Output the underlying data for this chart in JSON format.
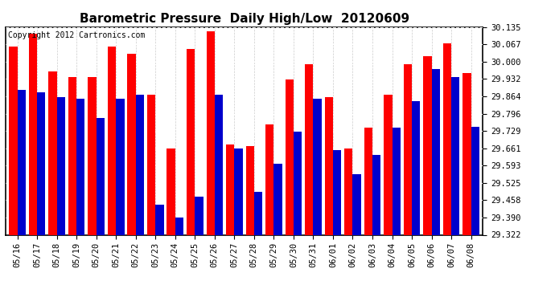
{
  "title": "Barometric Pressure  Daily High/Low  20120609",
  "copyright": "Copyright 2012 Cartronics.com",
  "ylim": [
    29.322,
    30.135
  ],
  "yticks": [
    29.322,
    29.39,
    29.458,
    29.525,
    29.593,
    29.661,
    29.729,
    29.796,
    29.864,
    29.932,
    30.0,
    30.067,
    30.135
  ],
  "dates": [
    "05/16",
    "05/17",
    "05/18",
    "05/19",
    "05/20",
    "05/21",
    "05/22",
    "05/23",
    "05/24",
    "05/25",
    "05/26",
    "05/27",
    "05/28",
    "05/29",
    "05/30",
    "05/31",
    "06/01",
    "06/02",
    "06/03",
    "06/04",
    "06/05",
    "06/06",
    "06/07",
    "06/08"
  ],
  "highs": [
    30.06,
    30.11,
    29.96,
    29.94,
    29.94,
    30.06,
    30.03,
    29.87,
    29.66,
    30.05,
    30.12,
    29.675,
    29.67,
    29.755,
    29.93,
    29.99,
    29.86,
    29.66,
    29.74,
    29.87,
    29.99,
    30.02,
    30.07,
    29.955
  ],
  "lows": [
    29.89,
    29.88,
    29.86,
    29.855,
    29.78,
    29.855,
    29.87,
    29.44,
    29.39,
    29.47,
    29.87,
    29.66,
    29.49,
    29.6,
    29.725,
    29.855,
    29.655,
    29.56,
    29.635,
    29.74,
    29.845,
    29.97,
    29.94,
    29.745
  ],
  "high_color": "#ff0000",
  "low_color": "#0000cc",
  "bg_color": "#ffffff",
  "title_fontsize": 11,
  "copyright_fontsize": 7,
  "tick_fontsize": 7.5
}
